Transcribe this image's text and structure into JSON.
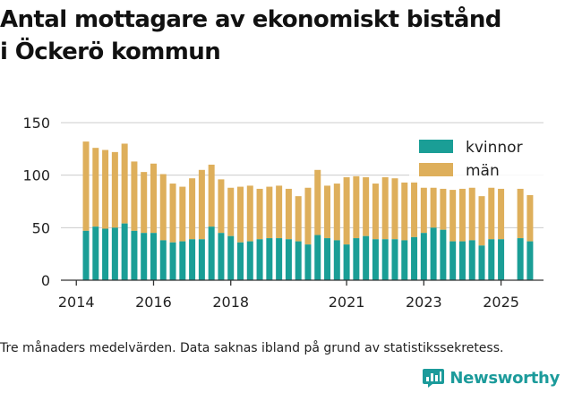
{
  "title_lines": [
    "Antal mottagare av ekonomiskt bistånd",
    "i Öckerö kommun"
  ],
  "caption": "Tre månaders medelvärden. Data saknas ibland på grund av statistikssekretess.",
  "brand": {
    "name": "Newsworthy",
    "icon": "bar-chart-logo-icon"
  },
  "colors": {
    "kvinnor": "#1a9e96",
    "man": "#deaf5b",
    "grid": "#cccccc",
    "axis": "#333333",
    "brand": "#1c9b9b"
  },
  "chart_data": {
    "type": "bar",
    "stacked": true,
    "ylim": [
      0,
      150
    ],
    "yticks": [
      0,
      50,
      100,
      150
    ],
    "xlim": [
      2013.6,
      2026.1
    ],
    "xticks": [
      2014,
      2016,
      2018,
      2021,
      2023,
      2025
    ],
    "legend": {
      "position": "top-right",
      "entries": [
        "kvinnor",
        "män"
      ]
    },
    "series": [
      {
        "name": "kvinnor",
        "color": "#1a9e96",
        "x": [
          2014.25,
          2014.5,
          2014.75,
          2015.0,
          2015.25,
          2015.5,
          2015.75,
          2016.0,
          2016.25,
          2016.5,
          2016.75,
          2017.0,
          2017.25,
          2017.5,
          2017.75,
          2018.0,
          2018.25,
          2018.5,
          2018.75,
          2019.0,
          2019.25,
          2019.5,
          2019.75,
          2020.0,
          2020.25,
          2020.5,
          2020.75,
          2021.0,
          2021.25,
          2021.5,
          2021.75,
          2022.0,
          2022.25,
          2022.5,
          2022.75,
          2023.0,
          2023.25,
          2023.5,
          2023.75,
          2024.0,
          2024.25,
          2024.5,
          2024.75,
          2025.0,
          2025.5,
          2025.75
        ],
        "values": [
          47,
          51,
          49,
          50,
          54,
          47,
          45,
          45,
          38,
          36,
          37,
          39,
          39,
          51,
          45,
          42,
          36,
          37,
          39,
          40,
          40,
          39,
          37,
          34,
          43,
          40,
          38,
          34,
          40,
          42,
          39,
          39,
          39,
          38,
          41,
          45,
          50,
          48,
          37,
          37,
          38,
          33,
          39,
          39,
          40,
          37
        ]
      },
      {
        "name": "män",
        "color": "#deaf5b",
        "x": [
          2014.25,
          2014.5,
          2014.75,
          2015.0,
          2015.25,
          2015.5,
          2015.75,
          2016.0,
          2016.25,
          2016.5,
          2016.75,
          2017.0,
          2017.25,
          2017.5,
          2017.75,
          2018.0,
          2018.25,
          2018.5,
          2018.75,
          2019.0,
          2019.25,
          2019.5,
          2019.75,
          2020.0,
          2020.25,
          2020.5,
          2020.75,
          2021.0,
          2021.25,
          2021.5,
          2021.75,
          2022.0,
          2022.25,
          2022.5,
          2022.75,
          2023.0,
          2023.25,
          2023.5,
          2023.75,
          2024.0,
          2024.25,
          2024.5,
          2024.75,
          2025.0,
          2025.5,
          2025.75
        ],
        "values": [
          85,
          75,
          75,
          72,
          76,
          66,
          58,
          66,
          63,
          56,
          52,
          58,
          66,
          59,
          51,
          46,
          53,
          53,
          48,
          49,
          50,
          48,
          43,
          54,
          62,
          50,
          54,
          64,
          59,
          56,
          53,
          59,
          58,
          55,
          53,
          43,
          38,
          39,
          49,
          50,
          50,
          47,
          49,
          48,
          47,
          44
        ]
      }
    ]
  }
}
